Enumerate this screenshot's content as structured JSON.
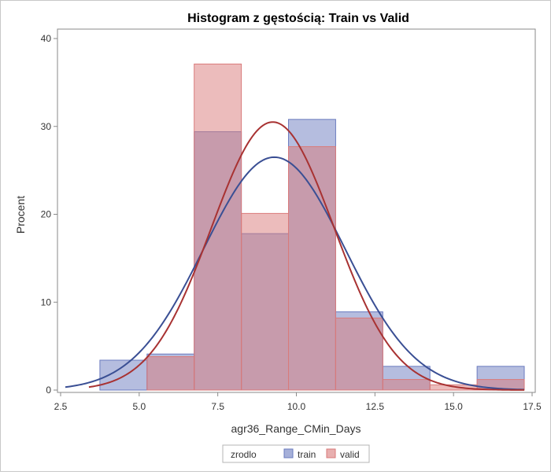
{
  "chart_data": {
    "type": "bar",
    "title": "Histogram z gęstością: Train vs Valid",
    "xlabel": "agr36_Range_CMin_Days",
    "ylabel": "Procent",
    "xlim": [
      2.4,
      17.6
    ],
    "ylim": [
      0,
      40
    ],
    "xticks": [
      "2.5",
      "5.0",
      "7.5",
      "10.0",
      "12.5",
      "15.0",
      "17.5"
    ],
    "yticks": [
      "0",
      "10",
      "20",
      "30",
      "40"
    ],
    "bins": [
      {
        "from": 3.75,
        "to": 5.25
      },
      {
        "from": 5.25,
        "to": 6.75
      },
      {
        "from": 6.75,
        "to": 8.25
      },
      {
        "from": 8.25,
        "to": 9.75
      },
      {
        "from": 9.75,
        "to": 11.25
      },
      {
        "from": 11.25,
        "to": 12.75
      },
      {
        "from": 12.75,
        "to": 14.25
      },
      {
        "from": 14.25,
        "to": 15.75
      },
      {
        "from": 15.75,
        "to": 17.25
      }
    ],
    "series": [
      {
        "name": "train",
        "color": "#6b7bbf",
        "values": [
          3.4,
          4.1,
          29.4,
          17.8,
          30.8,
          8.9,
          2.7,
          0,
          2.7
        ],
        "density": {
          "mean": 9.3,
          "sd": 2.25,
          "peak": 26.5,
          "xmin": 2.65,
          "xmax": 17.25
        }
      },
      {
        "name": "valid",
        "color": "#d97a7a",
        "values": [
          0,
          3.8,
          37.1,
          20.1,
          27.7,
          8.2,
          1.2,
          0.6,
          1.2
        ],
        "density": {
          "mean": 9.25,
          "sd": 1.95,
          "peak": 30.5,
          "xmin": 3.4,
          "xmax": 17.25
        }
      }
    ],
    "legend": {
      "title": "zrodlo",
      "position": "bottom"
    }
  }
}
